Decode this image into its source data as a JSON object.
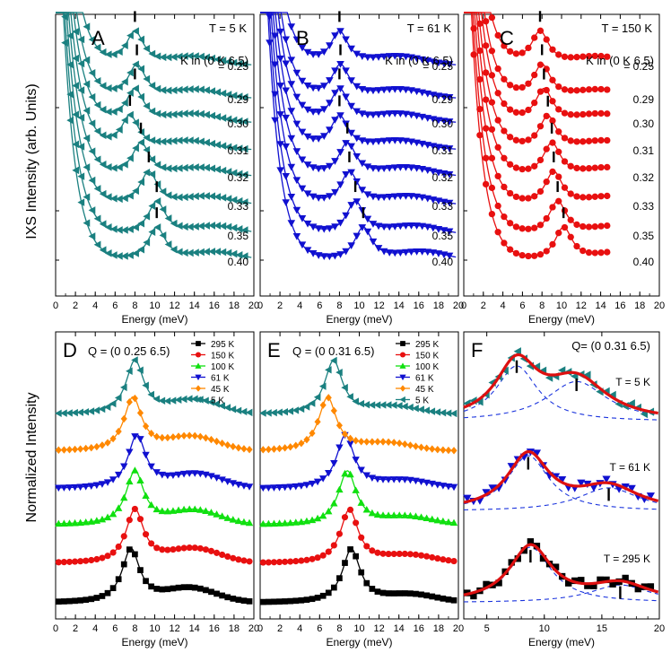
{
  "figure": {
    "ylabel_top": "IXS Intensity (arb. Units)",
    "ylabel_bottom": "Normalized Intensity"
  },
  "chart_data": [
    {
      "panel": "A",
      "type": "line",
      "title": "T = 5 K",
      "color": "#1a8080",
      "marker": "tri-left",
      "subtitle": "K in (0 K 6.5)",
      "xlabel": "Energy (meV)",
      "xlim": [
        0,
        20
      ],
      "xticks": [
        "0",
        "2",
        "4",
        "6",
        "8",
        "10",
        "12",
        "14",
        "16",
        "18",
        "20"
      ],
      "series": [
        {
          "label": "= 0.25",
          "peak": 8.0
        },
        {
          "label": "0.29",
          "peak": 8.2
        },
        {
          "label": "0.30",
          "peak": 8.0
        },
        {
          "label": "0.31",
          "peak": 7.5
        },
        {
          "label": "0.32",
          "peak": 8.6
        },
        {
          "label": "0.33",
          "peak": 9.4
        },
        {
          "label": "0.35",
          "peak": 10.2
        },
        {
          "label": "0.40",
          "peak": 10.2
        }
      ]
    },
    {
      "panel": "B",
      "type": "line",
      "title": "T = 61 K",
      "color": "#1010d0",
      "marker": "tri-down",
      "subtitle": "K in (0 K 6.5)",
      "xlabel": "Energy (meV)",
      "xlim": [
        0,
        20
      ],
      "xticks": [
        "0",
        "2",
        "4",
        "6",
        "8",
        "10",
        "12",
        "14",
        "16",
        "18",
        "20"
      ],
      "series": [
        {
          "label": "= 0.25",
          "peak": 8.0
        },
        {
          "label": "0.29",
          "peak": 8.1
        },
        {
          "label": "0.30",
          "peak": 8.0
        },
        {
          "label": "0.31",
          "peak": 8.0
        },
        {
          "label": "0.32",
          "peak": 8.8
        },
        {
          "label": "0.33",
          "peak": 9.0
        },
        {
          "label": "0.35",
          "peak": 9.6
        },
        {
          "label": "0.40",
          "peak": 10.4
        }
      ]
    },
    {
      "panel": "C",
      "type": "line",
      "title": "T = 150 K",
      "color": "#e81010",
      "marker": "circle",
      "subtitle": "K in (0 K 6.5)",
      "xlabel": "Energy (meV)",
      "xlim": [
        0,
        20
      ],
      "xticks": [
        "0",
        "2",
        "4",
        "6",
        "8",
        "10",
        "12",
        "14",
        "16",
        "18",
        "20"
      ],
      "series": [
        {
          "label": "= 0.25",
          "peak": 7.8
        },
        {
          "label": "0.29",
          "peak": 8.0
        },
        {
          "label": "0.30",
          "peak": 8.2
        },
        {
          "label": "0.31",
          "peak": 8.6
        },
        {
          "label": "0.32",
          "peak": 9.0
        },
        {
          "label": "0.33",
          "peak": 9.2
        },
        {
          "label": "0.35",
          "peak": 9.6
        },
        {
          "label": "0.40",
          "peak": 10.2
        }
      ]
    },
    {
      "panel": "D",
      "type": "line",
      "title": "Q = (0 0.25 6.5)",
      "xlabel": "Energy (meV)",
      "xlim": [
        0,
        20
      ],
      "xticks": [
        "0",
        "2",
        "4",
        "6",
        "8",
        "10",
        "12",
        "14",
        "16",
        "18",
        "20"
      ],
      "series": [
        {
          "name": "295 K",
          "color": "#000000",
          "marker": "square",
          "peak": 7.6
        },
        {
          "name": "150 K",
          "color": "#e81010",
          "marker": "circle",
          "peak": 8.0
        },
        {
          "name": "100 K",
          "color": "#10e010",
          "marker": "tri-up",
          "peak": 8.0
        },
        {
          "name": "61 K",
          "color": "#1010d0",
          "marker": "tri-down",
          "peak": 8.2
        },
        {
          "name": "45 K",
          "color": "#ff8800",
          "marker": "diamond",
          "peak": 7.8
        },
        {
          "name": "5 K",
          "color": "#1a8080",
          "marker": "tri-left",
          "peak": 8.0
        }
      ]
    },
    {
      "panel": "E",
      "type": "line",
      "title": "Q = (0 0.31 6.5)",
      "xlabel": "Energy (meV)",
      "xlim": [
        0,
        20
      ],
      "xticks": [
        "0",
        "2",
        "4",
        "6",
        "8",
        "10",
        "12",
        "14",
        "16",
        "18",
        "20"
      ],
      "series": [
        {
          "name": "295 K",
          "color": "#000000",
          "marker": "square",
          "peak": 9.2
        },
        {
          "name": "150 K",
          "color": "#e81010",
          "marker": "circle",
          "peak": 9.0
        },
        {
          "name": "100 K",
          "color": "#10e010",
          "marker": "tri-up",
          "peak": 8.8
        },
        {
          "name": "61 K",
          "color": "#1010d0",
          "marker": "tri-down",
          "peak": 8.6
        },
        {
          "name": "45 K",
          "color": "#ff8800",
          "marker": "diamond",
          "peak": 6.8
        },
        {
          "name": "5 K",
          "color": "#1a8080",
          "marker": "tri-left",
          "peak": 7.4
        }
      ]
    },
    {
      "panel": "F",
      "type": "line",
      "title": "Q= (0 0.31 6.5)",
      "xlabel": "Energy (meV)",
      "xlim": [
        3,
        20
      ],
      "xticks": [
        "5",
        "10",
        "15",
        "20"
      ],
      "fit_color": "#dd1010",
      "component_color": "#1a33dd",
      "series": [
        {
          "name": "T = 5 K",
          "color": "#1a8080",
          "marker": "tri-left",
          "peaks": [
            7.6,
            12.8
          ]
        },
        {
          "name": "T = 61 K",
          "color": "#1010d0",
          "marker": "tri-down",
          "peaks": [
            8.6,
            15.6
          ]
        },
        {
          "name": "T = 295 K",
          "color": "#000000",
          "marker": "square",
          "peaks": [
            8.8,
            16.6
          ]
        }
      ]
    }
  ]
}
